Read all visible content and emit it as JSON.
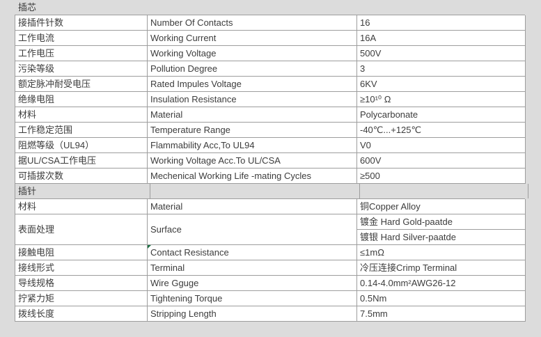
{
  "colors": {
    "page_bg": "#dcdcdc",
    "cell_bg": "#ffffff",
    "border": "#9d9d9d",
    "text": "#3c3c3c",
    "note_marker": "#1e7145"
  },
  "table": {
    "sections": [
      {
        "header": "插芯",
        "rows": [
          {
            "cn": "接插件针数",
            "en": "Number Of Contacts",
            "value": "16"
          },
          {
            "cn": "工作电流",
            "en": "Working Current",
            "value": "16A"
          },
          {
            "cn": "工作电压",
            "en": "Working Voltage",
            "value": "500V"
          },
          {
            "cn": "污染等级",
            "en": "Pollution Degree",
            "value": "3"
          },
          {
            "cn": "额定脉冲耐受电压",
            "en": "Rated Impules Voltage",
            "value": "6KV"
          },
          {
            "cn": "绝缘电阻",
            "en": "Insulation Resistance",
            "value": "≥10¹⁰ Ω"
          },
          {
            "cn": "材料",
            "en": "Material",
            "value": "Polycarbonate"
          },
          {
            "cn": "工作稳定范围",
            "en": "Temperature Range",
            "value": "-40℃...+125℃"
          },
          {
            "cn": "阻燃等级（UL94）",
            "en": "Flammability Acc,To UL94",
            "value": "V0"
          },
          {
            "cn": "据UL/CSA工作电压",
            "en": "Working Voltage Acc.To UL/CSA",
            "value": "600V"
          },
          {
            "cn": "可插拔次数",
            "en": "Mechenical Working Life -mating Cycles",
            "value": "≥500"
          }
        ]
      },
      {
        "header": "插针",
        "rows": [
          {
            "cn": "材料",
            "en": "Material",
            "value": "铜Copper Alloy"
          },
          {
            "cn": "表面处理",
            "en": "Surface",
            "values": [
              "镀金 Hard Gold-paatde",
              "镀银 Hard Silver-paatde"
            ]
          },
          {
            "cn": "接触电阻",
            "en": "Contact Resistance",
            "value": "≤1mΩ",
            "marker": true
          },
          {
            "cn": "接线形式",
            "en": "Terminal",
            "value": "冷压连接Crimp Terminal"
          },
          {
            "cn": "导线规格",
            "en": "Wire Gguge",
            "value": "0.14-4.0mm²AWG26-12"
          },
          {
            "cn": "拧紧力矩",
            "en": "Tightening Torque",
            "value": "0.5Nm"
          },
          {
            "cn": "拨线长度",
            "en": "Stripping Length",
            "value": "7.5mm"
          }
        ]
      }
    ]
  }
}
